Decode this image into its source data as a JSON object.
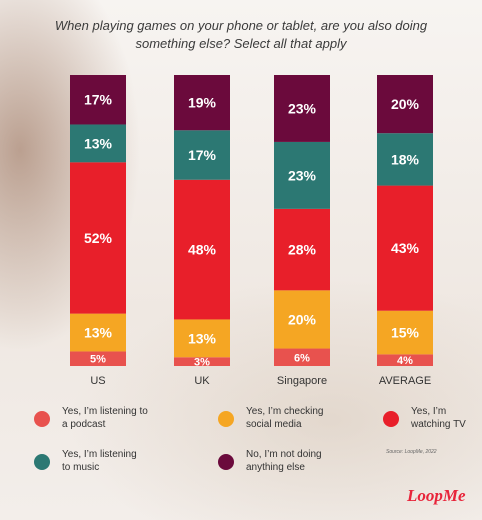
{
  "title": "When playing games on your phone or tablet, are you also doing something else? Select all that apply",
  "source": "Source: LoopMe, 2022",
  "logo": "LoopMe",
  "chart_data": {
    "type": "bar",
    "stacked": true,
    "categories": [
      "US",
      "UK",
      "Singapore",
      "AVERAGE"
    ],
    "series": [
      {
        "name": "Yes, I'm listening to a podcast",
        "color": "#e8524e",
        "values": [
          5,
          3,
          6,
          4
        ]
      },
      {
        "name": "Yes, I'm checking social media",
        "color": "#f5a623",
        "values": [
          13,
          13,
          20,
          15
        ]
      },
      {
        "name": "Yes, I'm watching TV",
        "color": "#e81f2a",
        "values": [
          52,
          48,
          28,
          43
        ]
      },
      {
        "name": "Yes, I'm listening to music",
        "color": "#2c7873",
        "values": [
          13,
          17,
          23,
          18
        ]
      },
      {
        "name": "No, I'm not doing anything else",
        "color": "#6b0a3c",
        "values": [
          17,
          19,
          23,
          20
        ]
      }
    ],
    "ylim": [
      0,
      100
    ]
  },
  "legend": [
    {
      "label": "Yes, I’m listening to\na podcast",
      "color": "#e8524e",
      "icon": "podcast-dot"
    },
    {
      "label": "Yes, I’m checking\nsocial media",
      "color": "#f5a623",
      "icon": "social-media-dot"
    },
    {
      "label": "Yes, I’m\nwatching TV",
      "color": "#e81f2a",
      "icon": "tv-dot"
    },
    {
      "label": "Yes, I’m listening\nto music",
      "color": "#2c7873",
      "icon": "music-dot"
    },
    {
      "label": "No, I’m not doing\nanything else",
      "color": "#6b0a3c",
      "icon": "nothing-dot"
    }
  ]
}
